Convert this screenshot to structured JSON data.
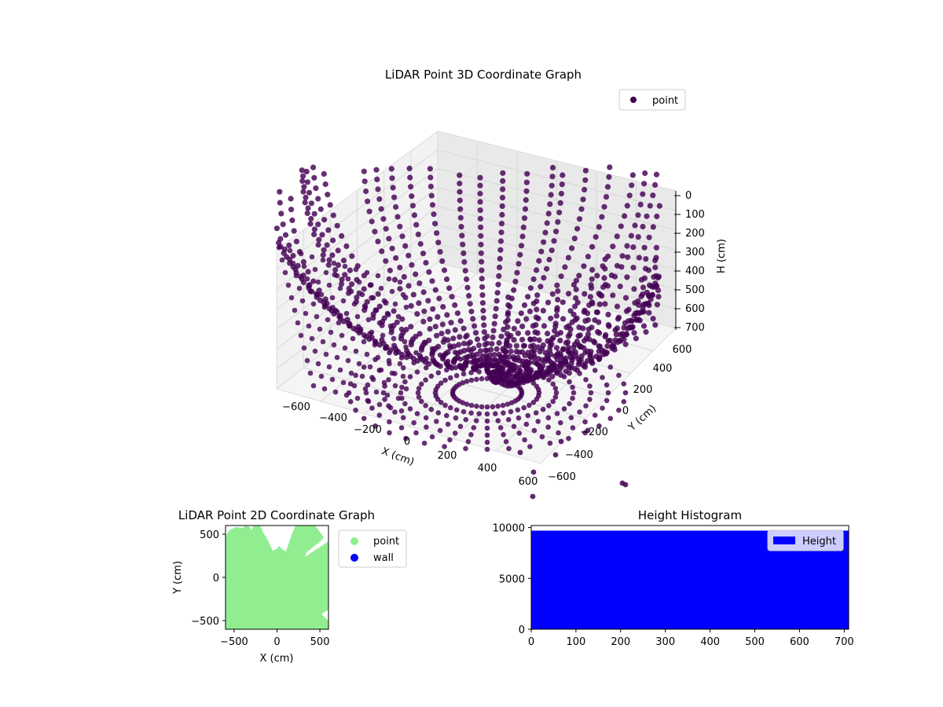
{
  "figure": {
    "title": ""
  },
  "chart_data": [
    {
      "type": "scatter",
      "projection": "3d",
      "title": "LiDAR Point 3D Coordinate Graph",
      "xlabel": "X (cm)",
      "ylabel": "Y (cm)",
      "zlabel": "H (cm)",
      "xticks": [
        "−600",
        "−400",
        "−200",
        "0",
        "200",
        "400",
        "600"
      ],
      "yticks": [
        "−600",
        "−400",
        "−200",
        "0",
        "200",
        "400",
        "600"
      ],
      "zticks": [
        "0",
        "100",
        "200",
        "300",
        "400",
        "500",
        "600",
        "700"
      ],
      "xlim": [
        -700,
        700
      ],
      "ylim": [
        -700,
        700
      ],
      "zlim": [
        0,
        700
      ],
      "z_inverted": true,
      "grid": true,
      "legend": {
        "position": "top-right",
        "entries": [
          {
            "label": "point",
            "color": "#440154"
          }
        ]
      },
      "series": [
        {
          "name": "point",
          "color": "#440154"
        }
      ]
    },
    {
      "type": "scatter",
      "title": "LiDAR Point 2D Coordinate Graph",
      "xlabel": "X (cm)",
      "ylabel": "Y (cm)",
      "xticks": [
        "−500",
        "0",
        "500"
      ],
      "yticks": [
        "500",
        "0",
        "−500"
      ],
      "xlim": [
        -600,
        600
      ],
      "ylim": [
        -600,
        600
      ],
      "legend": {
        "position": "outside-right",
        "entries": [
          {
            "label": "point",
            "color": "#90ee90"
          },
          {
            "label": "wall",
            "color": "#0000ff"
          }
        ]
      },
      "series": [
        {
          "name": "point",
          "color": "#90ee90"
        },
        {
          "name": "wall",
          "color": "#0000ff"
        }
      ]
    },
    {
      "type": "bar",
      "title": "Height Histogram",
      "xticks": [
        "0",
        "100",
        "200",
        "300",
        "400",
        "500",
        "600",
        "700"
      ],
      "yticks": [
        "0",
        "5000",
        "10000"
      ],
      "xlim": [
        0,
        710
      ],
      "ylim": [
        0,
        10200
      ],
      "bins": [
        {
          "x0": 0,
          "x1": 710,
          "count": 9700
        }
      ],
      "legend": {
        "position": "top-right",
        "entries": [
          {
            "label": "Height",
            "color": "#0000ff"
          }
        ]
      },
      "series": [
        {
          "name": "Height",
          "color": "#0000ff"
        }
      ]
    }
  ]
}
